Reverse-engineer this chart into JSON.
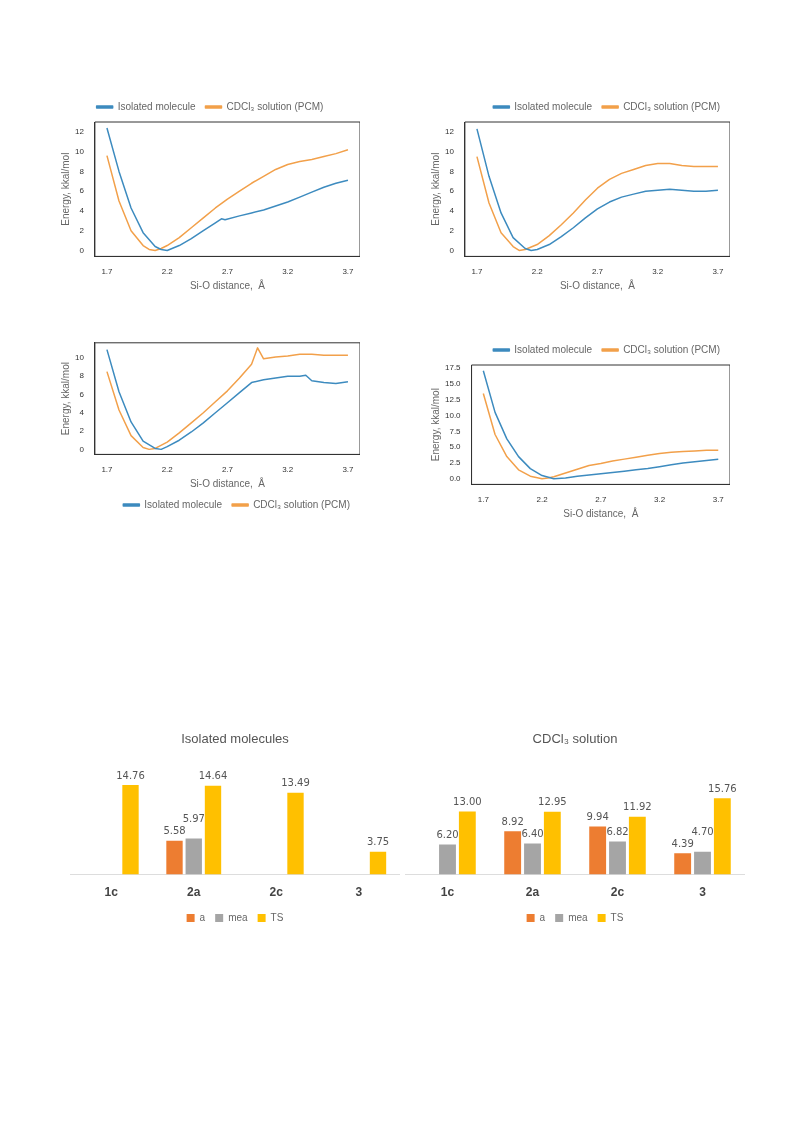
{
  "chart_data": [
    {
      "type": "line",
      "xlabel": "Si-O distance,  Å",
      "ylabel": "Energy, kkal/mol",
      "legend": "top",
      "xlim": [
        1.6,
        3.8
      ],
      "ylim": [
        -0.6,
        13
      ],
      "xticks": [
        1.7,
        2.2,
        2.7,
        3.2,
        3.7
      ],
      "yticks": [
        0,
        2,
        4,
        6,
        8,
        10,
        12
      ],
      "series": [
        {
          "name": "Isolated molecule",
          "color": "#3d8bbf",
          "x": [
            1.7,
            1.8,
            1.9,
            2.0,
            2.1,
            2.15,
            2.2,
            2.3,
            2.4,
            2.5,
            2.6,
            2.65,
            2.68,
            2.8,
            2.9,
            3.0,
            3.1,
            3.2,
            3.3,
            3.4,
            3.5,
            3.6,
            3.7
          ],
          "values": [
            12.4,
            8.0,
            4.3,
            1.8,
            0.4,
            0.1,
            0.0,
            0.5,
            1.2,
            2.0,
            2.8,
            3.2,
            3.1,
            3.5,
            3.8,
            4.1,
            4.5,
            4.9,
            5.4,
            5.9,
            6.4,
            6.8,
            7.1
          ]
        },
        {
          "name": "CDCl₃ solution (PCM)",
          "color": "#f2a04a",
          "x": [
            1.7,
            1.8,
            1.9,
            2.0,
            2.05,
            2.1,
            2.15,
            2.2,
            2.3,
            2.4,
            2.5,
            2.6,
            2.7,
            2.8,
            2.9,
            3.0,
            3.1,
            3.2,
            3.3,
            3.4,
            3.5,
            3.6,
            3.7
          ],
          "values": [
            9.6,
            5.0,
            2.0,
            0.5,
            0.1,
            0.0,
            0.2,
            0.5,
            1.3,
            2.3,
            3.3,
            4.3,
            5.2,
            6.0,
            6.8,
            7.5,
            8.2,
            8.7,
            9.0,
            9.2,
            9.5,
            9.8,
            10.2
          ]
        }
      ]
    },
    {
      "type": "line",
      "xlabel": "Si-O distance,  Å",
      "ylabel": "Energy, kkal/mol",
      "legend": "top right",
      "xlim": [
        1.6,
        3.8
      ],
      "ylim": [
        -0.6,
        13
      ],
      "xticks": [
        1.7,
        2.2,
        2.7,
        3.2,
        3.7
      ],
      "yticks": [
        0,
        2,
        4,
        6,
        8,
        10,
        12
      ],
      "series": [
        {
          "name": "Isolated molecule",
          "color": "#3d8bbf",
          "x": [
            1.7,
            1.8,
            1.9,
            2.0,
            2.1,
            2.15,
            2.2,
            2.3,
            2.4,
            2.5,
            2.6,
            2.7,
            2.8,
            2.9,
            3.0,
            3.1,
            3.2,
            3.3,
            3.4,
            3.5,
            3.6,
            3.7
          ],
          "values": [
            12.3,
            7.5,
            3.8,
            1.3,
            0.2,
            0.0,
            0.1,
            0.6,
            1.4,
            2.3,
            3.3,
            4.2,
            4.9,
            5.4,
            5.7,
            6.0,
            6.1,
            6.2,
            6.1,
            6.0,
            6.0,
            6.1
          ]
        },
        {
          "name": "CDCl₃ solution (PCM)",
          "color": "#f2a04a",
          "x": [
            1.7,
            1.8,
            1.9,
            2.0,
            2.05,
            2.1,
            2.2,
            2.3,
            2.4,
            2.5,
            2.6,
            2.7,
            2.8,
            2.9,
            3.0,
            3.1,
            3.2,
            3.3,
            3.4,
            3.5,
            3.6,
            3.7
          ],
          "values": [
            9.5,
            4.8,
            1.8,
            0.4,
            0.0,
            0.1,
            0.6,
            1.5,
            2.6,
            3.8,
            5.1,
            6.3,
            7.2,
            7.8,
            8.2,
            8.6,
            8.8,
            8.8,
            8.6,
            8.5,
            8.5,
            8.5
          ]
        }
      ]
    },
    {
      "type": "line",
      "xlabel": "Si-O distance,  Å",
      "ylabel": "Energy, kkal/mol",
      "legend": "bottom right",
      "xlim": [
        1.6,
        3.8
      ],
      "ylim": [
        -0.55,
        11.65
      ],
      "xticks": [
        1.7,
        2.2,
        2.7,
        3.2,
        3.7
      ],
      "yticks": [
        0,
        2,
        4,
        6,
        8,
        10
      ],
      "series": [
        {
          "name": "Isolated molecule",
          "color": "#3d8bbf",
          "x": [
            1.7,
            1.8,
            1.9,
            2.0,
            2.1,
            2.15,
            2.2,
            2.3,
            2.4,
            2.5,
            2.6,
            2.7,
            2.8,
            2.9,
            3.0,
            3.1,
            3.2,
            3.3,
            3.35,
            3.4,
            3.5,
            3.6,
            3.7
          ],
          "values": [
            10.9,
            6.3,
            3.0,
            0.9,
            0.1,
            0.0,
            0.3,
            1.0,
            1.9,
            2.9,
            4.0,
            5.1,
            6.2,
            7.3,
            7.6,
            7.8,
            8.0,
            8.0,
            8.1,
            7.5,
            7.3,
            7.2,
            7.4
          ]
        },
        {
          "name": "CDCl₃ solution (PCM)",
          "color": "#f2a04a",
          "x": [
            1.7,
            1.8,
            1.9,
            2.0,
            2.05,
            2.1,
            2.2,
            2.3,
            2.4,
            2.5,
            2.6,
            2.7,
            2.8,
            2.9,
            2.95,
            3.0,
            3.1,
            3.2,
            3.3,
            3.4,
            3.5,
            3.6,
            3.7
          ],
          "values": [
            8.5,
            4.3,
            1.5,
            0.2,
            0.0,
            0.1,
            0.8,
            1.8,
            2.9,
            4.0,
            5.2,
            6.4,
            7.8,
            9.3,
            11.1,
            9.9,
            10.1,
            10.2,
            10.4,
            10.4,
            10.3,
            10.3,
            10.3
          ]
        }
      ]
    },
    {
      "type": "line",
      "xlabel": "Si-O distance,  Å",
      "ylabel": "Energy, kkal/mol",
      "legend": "top right",
      "xlim": [
        1.6,
        3.8
      ],
      "ylim": [
        -0.9,
        18
      ],
      "xticks": [
        1.7,
        2.2,
        2.7,
        3.2,
        3.7
      ],
      "yticks": [
        {
          "value": 0,
          "label": "0.0"
        },
        {
          "value": 2.5,
          "label": "2.5"
        },
        {
          "value": 5,
          "label": "5.0"
        },
        {
          "value": 7.5,
          "label": "7.5"
        },
        {
          "value": 10,
          "label": "10.0"
        },
        {
          "value": 12.5,
          "label": "12.5"
        },
        {
          "value": 15,
          "label": "15.0"
        },
        {
          "value": 17.5,
          "label": "17.5"
        }
      ],
      "series": [
        {
          "name": "Isolated molecule",
          "color": "#3d8bbf",
          "x": [
            1.7,
            1.8,
            1.9,
            2.0,
            2.1,
            2.2,
            2.3,
            2.4,
            2.5,
            2.6,
            2.7,
            2.8,
            2.9,
            3.0,
            3.1,
            3.2,
            3.3,
            3.4,
            3.5,
            3.6,
            3.7
          ],
          "values": [
            17.1,
            10.5,
            6.3,
            3.5,
            1.6,
            0.5,
            0.0,
            0.1,
            0.4,
            0.6,
            0.8,
            1.0,
            1.2,
            1.4,
            1.6,
            1.9,
            2.2,
            2.5,
            2.7,
            2.9,
            3.1
          ]
        },
        {
          "name": "CDCl₃ solution (PCM)",
          "color": "#f2a04a",
          "x": [
            1.7,
            1.8,
            1.9,
            2.0,
            2.1,
            2.2,
            2.25,
            2.3,
            2.4,
            2.5,
            2.6,
            2.7,
            2.8,
            2.9,
            3.0,
            3.1,
            3.2,
            3.3,
            3.4,
            3.5,
            3.6,
            3.7
          ],
          "values": [
            13.5,
            7.0,
            3.5,
            1.4,
            0.4,
            0.0,
            0.1,
            0.3,
            0.9,
            1.5,
            2.1,
            2.4,
            2.8,
            3.1,
            3.4,
            3.7,
            4.0,
            4.2,
            4.3,
            4.4,
            4.5,
            4.5
          ]
        }
      ]
    },
    {
      "type": "bar",
      "title": "Isolated molecules",
      "categories": [
        "1c",
        "2a",
        "2c",
        "3"
      ],
      "legend": "bottom",
      "tick_labels": "x",
      "series": [
        {
          "name": "a",
          "color": "#ed7d31",
          "values": [
            null,
            5.58,
            null,
            null
          ],
          "value_labels": [
            null,
            "5.58",
            null,
            null
          ]
        },
        {
          "name": "mea",
          "color": "#a5a5a5",
          "values": [
            null,
            5.97,
            null,
            null
          ],
          "value_labels": [
            null,
            "5.97",
            null,
            null
          ]
        },
        {
          "name": "TS",
          "color": "#ffc000",
          "values": [
            14.76,
            14.64,
            13.49,
            3.75
          ],
          "value_labels": [
            "14.76",
            "14.64",
            "13.49",
            "3.75"
          ]
        }
      ]
    },
    {
      "type": "bar",
      "title": "CDCl₃ solution",
      "categories": [
        "1c",
        "2a",
        "2c",
        "3"
      ],
      "legend": "bottom",
      "tick_labels": "x",
      "series": [
        {
          "name": "a",
          "color": "#ed7d31",
          "values": [
            null,
            8.92,
            9.94,
            4.39
          ],
          "value_labels": [
            null,
            "8.92",
            "9.94",
            "4.39"
          ]
        },
        {
          "name": "mea",
          "color": "#a5a5a5",
          "values": [
            6.2,
            6.4,
            6.82,
            4.7
          ],
          "value_labels": [
            "6.20",
            "6.40",
            "6.82",
            "4.70"
          ]
        },
        {
          "name": "TS",
          "color": "#ffc000",
          "values": [
            13.0,
            12.95,
            11.92,
            15.76
          ],
          "value_labels": [
            "13.00",
            "12.95",
            "11.92",
            "15.76"
          ]
        }
      ]
    }
  ]
}
